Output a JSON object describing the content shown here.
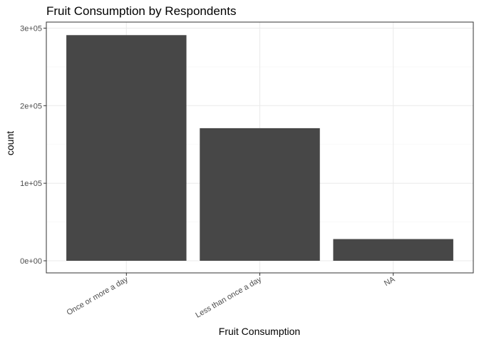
{
  "chart_data": {
    "type": "bar",
    "title": "Fruit Consumption by Respondents",
    "xlabel": "Fruit Consumption",
    "ylabel": "count",
    "categories": [
      "Once or more a day",
      "Less than once a day",
      "NA"
    ],
    "values": [
      291000,
      171000,
      28000
    ],
    "ylim": [
      0,
      300000
    ],
    "yticks": [
      0,
      100000,
      200000,
      300000
    ],
    "ytick_labels": [
      "0e+00",
      "1e+05",
      "2e+05",
      "3e+05"
    ],
    "grid": true,
    "legend": "none",
    "colors": {
      "bar": "#474747",
      "panel_border": "#333333",
      "grid_major": "#ebebeb",
      "grid_minor": "#f5f5f5",
      "tick_text": "#4d4d4d"
    }
  }
}
